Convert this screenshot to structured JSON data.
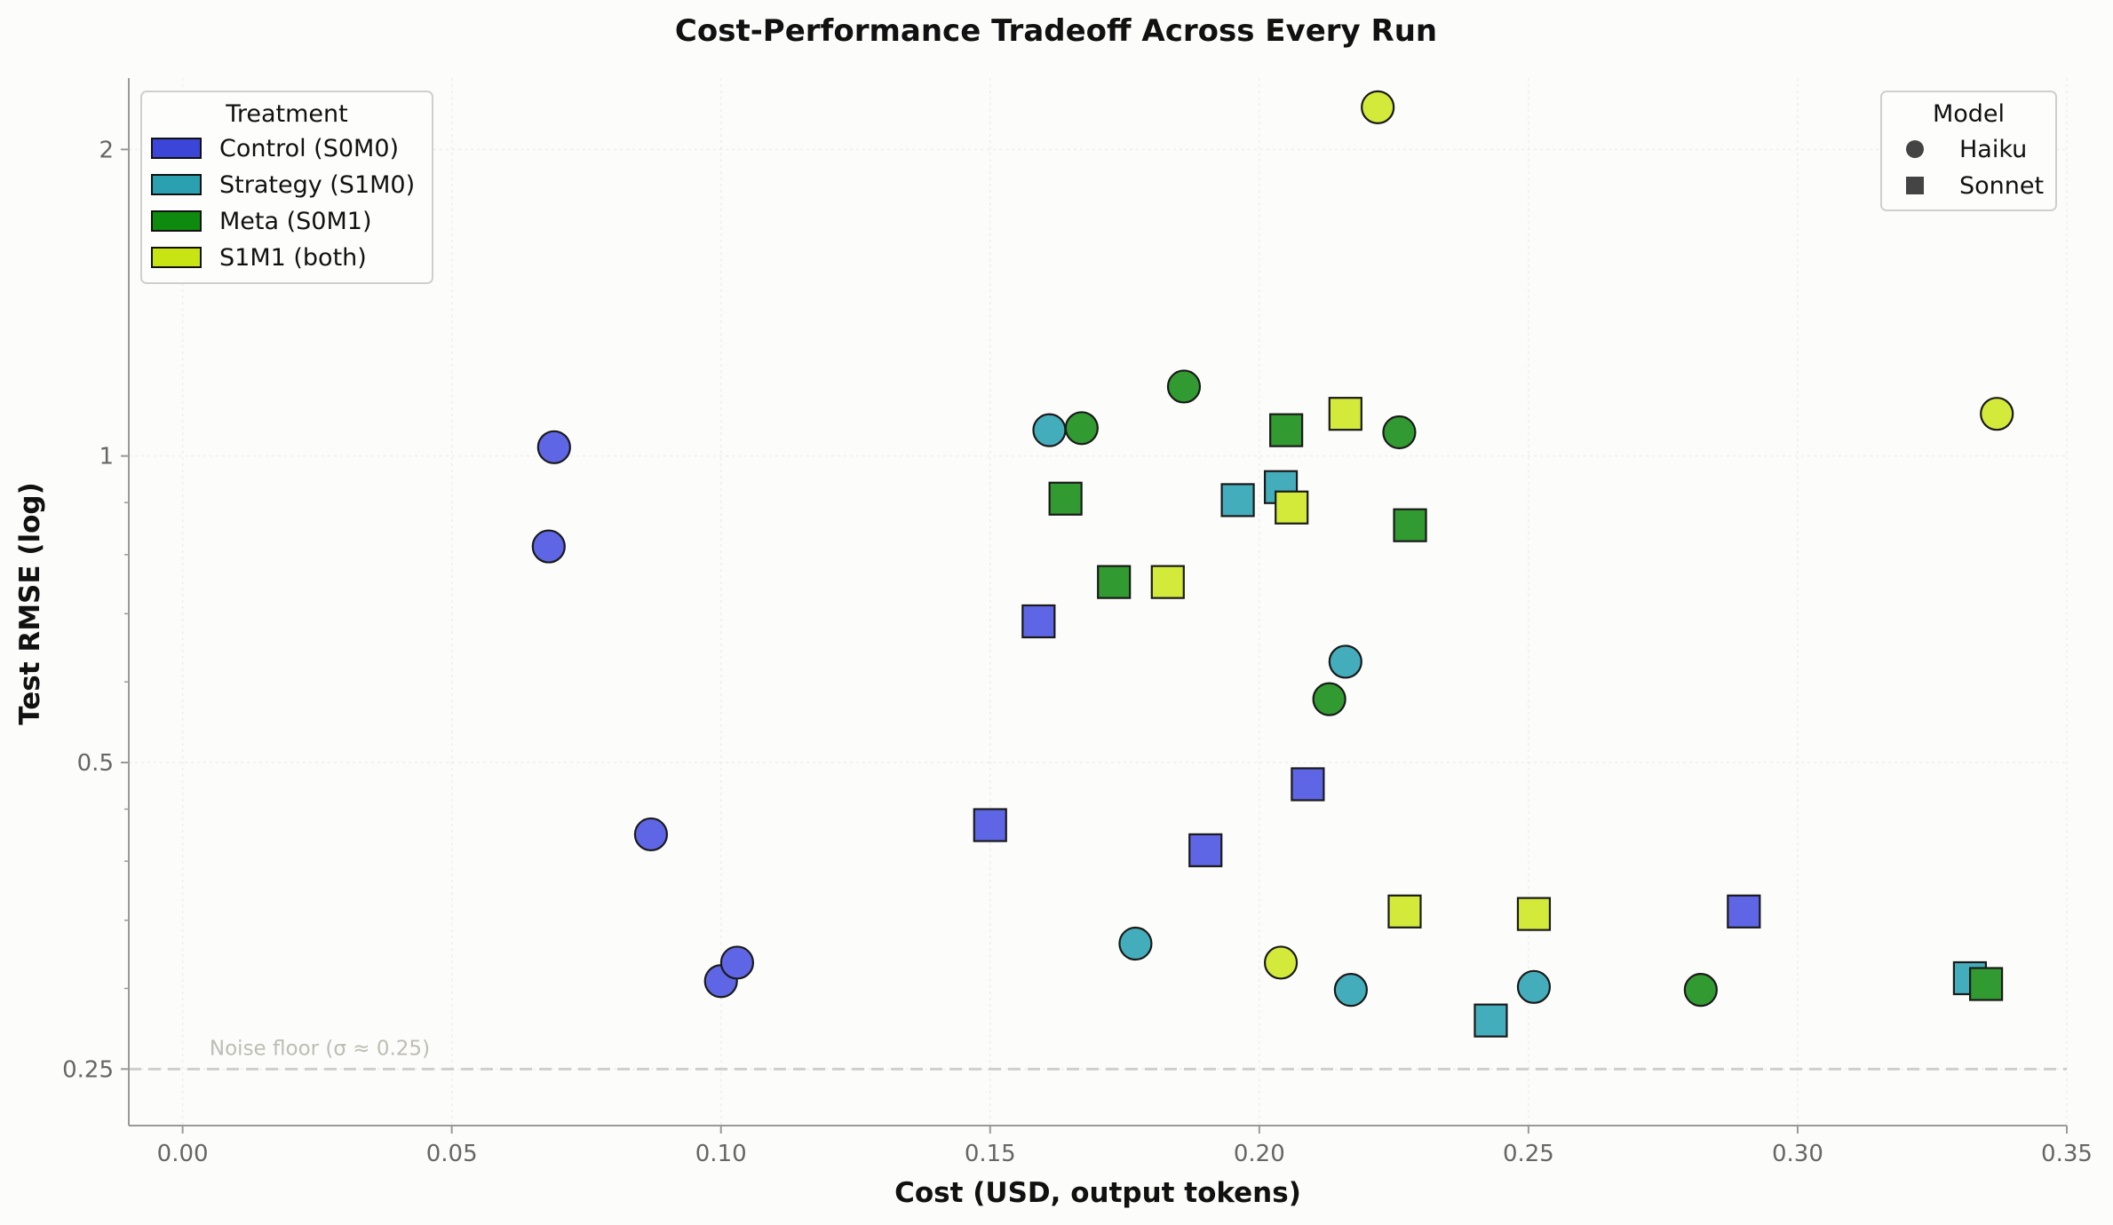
{
  "chart_data": {
    "type": "scatter",
    "title": "Cost-Performance Tradeoff Across Every Run",
    "xlabel": "Cost (USD, output tokens)",
    "ylabel": "Test RMSE (log)",
    "xlim": [
      -0.01,
      0.35
    ],
    "ylim": [
      0.22,
      2.35
    ],
    "y_scale": "log",
    "grid": true,
    "x_ticks": [
      {
        "value": 0.0,
        "label": "0.00"
      },
      {
        "value": 0.05,
        "label": "0.05"
      },
      {
        "value": 0.1,
        "label": "0.10"
      },
      {
        "value": 0.15,
        "label": "0.15"
      },
      {
        "value": 0.2,
        "label": "0.20"
      },
      {
        "value": 0.25,
        "label": "0.25"
      },
      {
        "value": 0.3,
        "label": "0.30"
      },
      {
        "value": 0.35,
        "label": "0.35"
      }
    ],
    "y_ticks": [
      {
        "value": 0.25,
        "label": "0.25"
      },
      {
        "value": 0.5,
        "label": "0.5"
      },
      {
        "value": 1,
        "label": "1"
      },
      {
        "value": 2,
        "label": "2"
      }
    ],
    "y_minor_ticks": [
      0.3,
      0.35,
      0.4,
      0.45,
      0.6,
      0.7,
      0.8,
      0.9
    ],
    "noise_floor": {
      "value": 0.25,
      "label": "Noise floor (σ ≈ 0.25)"
    },
    "treatment_legend": {
      "title": "Treatment",
      "placement": "top-left",
      "entries": [
        {
          "key": "control",
          "label": "Control (S0M0)",
          "color": "#3b46d8"
        },
        {
          "key": "strategy",
          "label": "Strategy (S1M0)",
          "color": "#2aa0b0"
        },
        {
          "key": "meta",
          "label": "Meta (S0M1)",
          "color": "#0e8a0e"
        },
        {
          "key": "both",
          "label": "S1M1 (both)",
          "color": "#c8e412"
        }
      ]
    },
    "model_legend": {
      "title": "Model",
      "placement": "top-right",
      "entries": [
        {
          "key": "haiku",
          "label": "Haiku",
          "marker": "circle"
        },
        {
          "key": "sonnet",
          "label": "Sonnet",
          "marker": "square"
        }
      ]
    },
    "colors": {
      "control": "#5e66e6",
      "strategy": "#44adbb",
      "meta": "#319a31",
      "both": "#d3ea3a",
      "edge": "#1a1a1a",
      "axis": "#999999",
      "grid": "#eeeeea",
      "noise_line": "#cfcfcf"
    },
    "points": [
      {
        "x": 0.069,
        "y": 1.02,
        "treatment": "control",
        "model": "haiku"
      },
      {
        "x": 0.068,
        "y": 0.815,
        "treatment": "control",
        "model": "haiku"
      },
      {
        "x": 0.087,
        "y": 0.425,
        "treatment": "control",
        "model": "haiku"
      },
      {
        "x": 0.1,
        "y": 0.305,
        "treatment": "control",
        "model": "haiku"
      },
      {
        "x": 0.103,
        "y": 0.318,
        "treatment": "control",
        "model": "haiku"
      },
      {
        "x": 0.15,
        "y": 0.434,
        "treatment": "control",
        "model": "sonnet"
      },
      {
        "x": 0.159,
        "y": 0.688,
        "treatment": "control",
        "model": "sonnet"
      },
      {
        "x": 0.19,
        "y": 0.41,
        "treatment": "control",
        "model": "sonnet"
      },
      {
        "x": 0.209,
        "y": 0.476,
        "treatment": "control",
        "model": "sonnet"
      },
      {
        "x": 0.29,
        "y": 0.357,
        "treatment": "control",
        "model": "sonnet"
      },
      {
        "x": 0.161,
        "y": 1.06,
        "treatment": "strategy",
        "model": "haiku"
      },
      {
        "x": 0.177,
        "y": 0.332,
        "treatment": "strategy",
        "model": "haiku"
      },
      {
        "x": 0.216,
        "y": 0.628,
        "treatment": "strategy",
        "model": "haiku"
      },
      {
        "x": 0.217,
        "y": 0.299,
        "treatment": "strategy",
        "model": "haiku"
      },
      {
        "x": 0.251,
        "y": 0.301,
        "treatment": "strategy",
        "model": "haiku"
      },
      {
        "x": 0.196,
        "y": 0.905,
        "treatment": "strategy",
        "model": "sonnet"
      },
      {
        "x": 0.204,
        "y": 0.932,
        "treatment": "strategy",
        "model": "sonnet"
      },
      {
        "x": 0.243,
        "y": 0.279,
        "treatment": "strategy",
        "model": "sonnet"
      },
      {
        "x": 0.332,
        "y": 0.307,
        "treatment": "strategy",
        "model": "sonnet"
      },
      {
        "x": 0.167,
        "y": 1.065,
        "treatment": "meta",
        "model": "haiku"
      },
      {
        "x": 0.186,
        "y": 1.17,
        "treatment": "meta",
        "model": "haiku"
      },
      {
        "x": 0.226,
        "y": 1.055,
        "treatment": "meta",
        "model": "haiku"
      },
      {
        "x": 0.213,
        "y": 0.577,
        "treatment": "meta",
        "model": "haiku"
      },
      {
        "x": 0.282,
        "y": 0.299,
        "treatment": "meta",
        "model": "haiku"
      },
      {
        "x": 0.164,
        "y": 0.908,
        "treatment": "meta",
        "model": "sonnet"
      },
      {
        "x": 0.173,
        "y": 0.752,
        "treatment": "meta",
        "model": "sonnet"
      },
      {
        "x": 0.205,
        "y": 1.06,
        "treatment": "meta",
        "model": "sonnet"
      },
      {
        "x": 0.228,
        "y": 0.855,
        "treatment": "meta",
        "model": "sonnet"
      },
      {
        "x": 0.335,
        "y": 0.303,
        "treatment": "meta",
        "model": "sonnet"
      },
      {
        "x": 0.222,
        "y": 2.2,
        "treatment": "both",
        "model": "haiku"
      },
      {
        "x": 0.337,
        "y": 1.1,
        "treatment": "both",
        "model": "haiku"
      },
      {
        "x": 0.204,
        "y": 0.318,
        "treatment": "both",
        "model": "haiku"
      },
      {
        "x": 0.183,
        "y": 0.752,
        "treatment": "both",
        "model": "sonnet"
      },
      {
        "x": 0.206,
        "y": 0.89,
        "treatment": "both",
        "model": "sonnet"
      },
      {
        "x": 0.216,
        "y": 1.1,
        "treatment": "both",
        "model": "sonnet"
      },
      {
        "x": 0.227,
        "y": 0.357,
        "treatment": "both",
        "model": "sonnet"
      },
      {
        "x": 0.251,
        "y": 0.355,
        "treatment": "both",
        "model": "sonnet"
      }
    ]
  }
}
